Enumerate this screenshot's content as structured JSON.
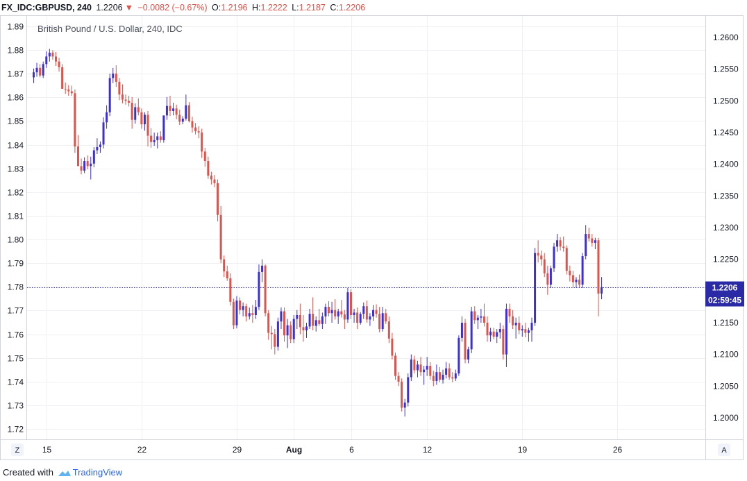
{
  "header": {
    "symbol": "FX_IDC:GBPUSD, 240",
    "last": "1.2206",
    "arrow": "▼",
    "change": "−0.0082 (−0.67%)",
    "o_label": "O:",
    "o_value": "1.2196",
    "h_label": "H:",
    "h_value": "1.2222",
    "l_label": "L:",
    "l_value": "1.2187",
    "c_label": "C:",
    "c_value": "1.2206"
  },
  "corner": {
    "left": "Z",
    "right": "A"
  },
  "price_badge": "1.2206",
  "countdown_badge": "02:59:45",
  "footer": {
    "prefix": "Created with",
    "brand": "TradingView"
  },
  "colors": {
    "up": "#3b2fd8",
    "down": "#e0524a",
    "lastline": "#2a2aa6",
    "grid": "#eef0f4"
  },
  "chart_data": {
    "type": "candlestick",
    "title": "British Pound / U.S. Dollar, 240, IDC",
    "left_axis": {
      "ticks": [
        1.89,
        1.88,
        1.87,
        1.86,
        1.85,
        1.84,
        1.83,
        1.82,
        1.81,
        1.8,
        1.79,
        1.78,
        1.77,
        1.76,
        1.75,
        1.74,
        1.73,
        1.72
      ],
      "range": [
        1.7156,
        1.8947
      ]
    },
    "right_axis": {
      "ticks": [
        "1.2600",
        "1.2550",
        "1.2500",
        "1.2450",
        "1.2400",
        "1.2350",
        "1.2300",
        "1.2250",
        "1.2200",
        "1.2150",
        "1.2100",
        "1.2050",
        "1.2000"
      ],
      "range": [
        1.1966,
        1.2635
      ]
    },
    "x_ticks": [
      {
        "label": "15",
        "bar": 4,
        "bold": false
      },
      {
        "label": "22",
        "bar": 34,
        "bold": false
      },
      {
        "label": "29",
        "bar": 64,
        "bold": false
      },
      {
        "label": "Aug",
        "bar": 82,
        "bold": true
      },
      {
        "label": "6",
        "bar": 100,
        "bold": false
      },
      {
        "label": "12",
        "bar": 124,
        "bold": false
      },
      {
        "label": "19",
        "bar": 154,
        "bold": false
      },
      {
        "label": "26",
        "bar": 184,
        "bold": false
      }
    ],
    "last_price": 1.2206,
    "ohlc": [
      [
        1.2537,
        1.2551,
        1.2528,
        1.2545
      ],
      [
        1.2545,
        1.256,
        1.2538,
        1.2552
      ],
      [
        1.2552,
        1.2558,
        1.2537,
        1.254
      ],
      [
        1.254,
        1.2562,
        1.2536,
        1.2558
      ],
      [
        1.2558,
        1.2578,
        1.2552,
        1.257
      ],
      [
        1.257,
        1.2582,
        1.2562,
        1.2576
      ],
      [
        1.2576,
        1.258,
        1.2565,
        1.257
      ],
      [
        1.257,
        1.2577,
        1.2555,
        1.2562
      ],
      [
        1.2562,
        1.2568,
        1.2546,
        1.2553
      ],
      [
        1.2553,
        1.2558,
        1.2534,
        1.2519
      ],
      [
        1.2519,
        1.2529,
        1.2511,
        1.2518
      ],
      [
        1.2518,
        1.2525,
        1.2508,
        1.2515
      ],
      [
        1.2515,
        1.2524,
        1.2508,
        1.2512
      ],
      [
        1.2512,
        1.2518,
        1.2418,
        1.2428
      ],
      [
        1.2428,
        1.2446,
        1.2398,
        1.2397
      ],
      [
        1.2397,
        1.2409,
        1.2384,
        1.239
      ],
      [
        1.239,
        1.2411,
        1.2386,
        1.2405
      ],
      [
        1.2405,
        1.2414,
        1.2392,
        1.2397
      ],
      [
        1.2397,
        1.2412,
        1.2376,
        1.2401
      ],
      [
        1.2401,
        1.2427,
        1.2395,
        1.2422
      ],
      [
        1.2422,
        1.2441,
        1.2416,
        1.2427
      ],
      [
        1.2427,
        1.2436,
        1.2418,
        1.2431
      ],
      [
        1.2431,
        1.2474,
        1.2425,
        1.2466
      ],
      [
        1.2466,
        1.2493,
        1.2456,
        1.2482
      ],
      [
        1.2482,
        1.2543,
        1.2476,
        1.2536
      ],
      [
        1.2536,
        1.2552,
        1.2528,
        1.2543
      ],
      [
        1.2543,
        1.2556,
        1.2522,
        1.253
      ],
      [
        1.253,
        1.2536,
        1.2501,
        1.251
      ],
      [
        1.251,
        1.2526,
        1.2496,
        1.2502
      ],
      [
        1.2502,
        1.251,
        1.2494,
        1.25
      ],
      [
        1.25,
        1.2508,
        1.2491,
        1.2497
      ],
      [
        1.2497,
        1.2506,
        1.2456,
        1.247
      ],
      [
        1.247,
        1.2496,
        1.2464,
        1.249
      ],
      [
        1.249,
        1.2504,
        1.2477,
        1.2482
      ],
      [
        1.2482,
        1.2488,
        1.2456,
        1.2463
      ],
      [
        1.2463,
        1.2482,
        1.2453,
        1.2478
      ],
      [
        1.2478,
        1.2484,
        1.2428,
        1.2445
      ],
      [
        1.2445,
        1.2457,
        1.2426,
        1.2435
      ],
      [
        1.2435,
        1.245,
        1.2429,
        1.2438
      ],
      [
        1.2438,
        1.245,
        1.2425,
        1.2444
      ],
      [
        1.2444,
        1.2452,
        1.2434,
        1.2438
      ],
      [
        1.2438,
        1.247,
        1.2434,
        1.2477
      ],
      [
        1.2477,
        1.2506,
        1.247,
        1.2492
      ],
      [
        1.2492,
        1.2508,
        1.2476,
        1.2484
      ],
      [
        1.2484,
        1.2497,
        1.2477,
        1.2488
      ],
      [
        1.2488,
        1.2494,
        1.2471,
        1.2478
      ],
      [
        1.2478,
        1.2486,
        1.2462,
        1.2467
      ],
      [
        1.2467,
        1.2476,
        1.2463,
        1.2472
      ],
      [
        1.2472,
        1.251,
        1.2469,
        1.2493
      ],
      [
        1.2493,
        1.2498,
        1.2466,
        1.2468
      ],
      [
        1.2468,
        1.2475,
        1.245,
        1.2458
      ],
      [
        1.2458,
        1.2465,
        1.2447,
        1.2452
      ],
      [
        1.2452,
        1.246,
        1.2441,
        1.245
      ],
      [
        1.245,
        1.2456,
        1.241,
        1.242
      ],
      [
        1.242,
        1.2426,
        1.2396,
        1.2405
      ],
      [
        1.2405,
        1.2412,
        1.2377,
        1.2382
      ],
      [
        1.2382,
        1.2388,
        1.2368,
        1.2376
      ],
      [
        1.2376,
        1.2383,
        1.2364,
        1.237
      ],
      [
        1.237,
        1.2376,
        1.231,
        1.232
      ],
      [
        1.232,
        1.2334,
        1.2244,
        1.225
      ],
      [
        1.225,
        1.2256,
        1.2222,
        1.2231
      ],
      [
        1.2231,
        1.224,
        1.2216,
        1.222
      ],
      [
        1.222,
        1.2228,
        1.2177,
        1.2183
      ],
      [
        1.2183,
        1.2188,
        1.214,
        1.2146
      ],
      [
        1.2146,
        1.2192,
        1.2141,
        1.2185
      ],
      [
        1.2185,
        1.219,
        1.2163,
        1.217
      ],
      [
        1.217,
        1.2182,
        1.216,
        1.2176
      ],
      [
        1.2176,
        1.218,
        1.2152,
        1.216
      ],
      [
        1.216,
        1.2174,
        1.2155,
        1.2165
      ],
      [
        1.2165,
        1.2178,
        1.215,
        1.2162
      ],
      [
        1.2162,
        1.2186,
        1.2156,
        1.2175
      ],
      [
        1.2175,
        1.2242,
        1.217,
        1.223
      ],
      [
        1.223,
        1.225,
        1.2214,
        1.224
      ],
      [
        1.224,
        1.2242,
        1.216,
        1.2165
      ],
      [
        1.2165,
        1.217,
        1.2123,
        1.2134
      ],
      [
        1.2134,
        1.2145,
        1.2108,
        1.2132
      ],
      [
        1.2132,
        1.214,
        1.21,
        1.2112
      ],
      [
        1.2112,
        1.2158,
        1.2106,
        1.2152
      ],
      [
        1.2152,
        1.2174,
        1.214,
        1.2168
      ],
      [
        1.2168,
        1.2174,
        1.212,
        1.213
      ],
      [
        1.213,
        1.2156,
        1.211,
        1.2146
      ],
      [
        1.2146,
        1.2152,
        1.2118,
        1.2124
      ],
      [
        1.2124,
        1.2162,
        1.2118,
        1.2156
      ],
      [
        1.2156,
        1.217,
        1.214,
        1.2162
      ],
      [
        1.2162,
        1.218,
        1.2132,
        1.2143
      ],
      [
        1.2143,
        1.2162,
        1.212,
        1.2138
      ],
      [
        1.2138,
        1.215,
        1.2126,
        1.2144
      ],
      [
        1.2144,
        1.2172,
        1.214,
        1.2164
      ],
      [
        1.2164,
        1.219,
        1.2138,
        1.2145
      ],
      [
        1.2145,
        1.216,
        1.2136,
        1.2154
      ],
      [
        1.2154,
        1.2172,
        1.2145,
        1.2148
      ],
      [
        1.2148,
        1.2166,
        1.214,
        1.216
      ],
      [
        1.216,
        1.218,
        1.2148,
        1.2175
      ],
      [
        1.2175,
        1.2184,
        1.216,
        1.2165
      ],
      [
        1.2165,
        1.2183,
        1.215,
        1.217
      ],
      [
        1.217,
        1.2187,
        1.2155,
        1.216
      ],
      [
        1.216,
        1.2172,
        1.2148,
        1.2168
      ],
      [
        1.2168,
        1.2186,
        1.2158,
        1.2163
      ],
      [
        1.2163,
        1.217,
        1.214,
        1.2155
      ],
      [
        1.2155,
        1.2205,
        1.215,
        1.2198
      ],
      [
        1.2198,
        1.2203,
        1.2156,
        1.2162
      ],
      [
        1.2162,
        1.2172,
        1.215,
        1.2166
      ],
      [
        1.2166,
        1.2174,
        1.214,
        1.215
      ],
      [
        1.215,
        1.2167,
        1.2147,
        1.2164
      ],
      [
        1.2164,
        1.2182,
        1.2156,
        1.2176
      ],
      [
        1.2176,
        1.2185,
        1.215,
        1.2155
      ],
      [
        1.2155,
        1.2165,
        1.2145,
        1.216
      ],
      [
        1.216,
        1.2178,
        1.2153,
        1.217
      ],
      [
        1.217,
        1.2179,
        1.2158,
        1.2164
      ],
      [
        1.2164,
        1.2175,
        1.2135,
        1.214
      ],
      [
        1.214,
        1.2175,
        1.2136,
        1.2165
      ],
      [
        1.2165,
        1.2172,
        1.2148,
        1.2152
      ],
      [
        1.2152,
        1.216,
        1.2118,
        1.2125
      ],
      [
        1.2125,
        1.2134,
        1.2092,
        1.2098
      ],
      [
        1.2098,
        1.2103,
        1.206,
        1.2066
      ],
      [
        1.2066,
        1.2072,
        1.205,
        1.2057
      ],
      [
        1.2057,
        1.2062,
        1.201,
        1.2016
      ],
      [
        1.2016,
        1.203,
        1.2002,
        1.2024
      ],
      [
        1.2024,
        1.207,
        1.2018,
        1.2064
      ],
      [
        1.2064,
        1.21,
        1.2058,
        1.2092
      ],
      [
        1.2092,
        1.2098,
        1.207,
        1.2075
      ],
      [
        1.2075,
        1.209,
        1.2064,
        1.2084
      ],
      [
        1.2084,
        1.2096,
        1.2066,
        1.2072
      ],
      [
        1.2072,
        1.2082,
        1.2052,
        1.2076
      ],
      [
        1.2076,
        1.2096,
        1.2066,
        1.2082
      ],
      [
        1.2082,
        1.2088,
        1.206,
        1.2066
      ],
      [
        1.2066,
        1.2074,
        1.205,
        1.2058
      ],
      [
        1.2058,
        1.2084,
        1.2052,
        1.2072
      ],
      [
        1.2072,
        1.208,
        1.2056,
        1.206
      ],
      [
        1.206,
        1.2076,
        1.2054,
        1.2068
      ],
      [
        1.2068,
        1.2088,
        1.2062,
        1.2078
      ],
      [
        1.2078,
        1.2086,
        1.206,
        1.2064
      ],
      [
        1.2064,
        1.2072,
        1.2056,
        1.2062
      ],
      [
        1.2062,
        1.2076,
        1.2058,
        1.207
      ],
      [
        1.207,
        1.213,
        1.2066,
        1.2126
      ],
      [
        1.2126,
        1.216,
        1.212,
        1.215
      ],
      [
        1.215,
        1.2156,
        1.2086,
        1.2092
      ],
      [
        1.2092,
        1.2112,
        1.2086,
        1.2108
      ],
      [
        1.2108,
        1.2175,
        1.2102,
        1.2168
      ],
      [
        1.2168,
        1.2176,
        1.2148,
        1.2154
      ],
      [
        1.2154,
        1.2162,
        1.214,
        1.2158
      ],
      [
        1.2158,
        1.2172,
        1.215,
        1.216
      ],
      [
        1.216,
        1.218,
        1.2144,
        1.215
      ],
      [
        1.215,
        1.216,
        1.212,
        1.213
      ],
      [
        1.213,
        1.2142,
        1.212,
        1.2136
      ],
      [
        1.2136,
        1.2142,
        1.2124,
        1.2128
      ],
      [
        1.2128,
        1.214,
        1.2118,
        1.2135
      ],
      [
        1.2135,
        1.215,
        1.2125,
        1.214
      ],
      [
        1.214,
        1.2146,
        1.2092,
        1.21
      ],
      [
        1.21,
        1.218,
        1.208,
        1.2172
      ],
      [
        1.2172,
        1.218,
        1.215,
        1.216
      ],
      [
        1.216,
        1.217,
        1.214,
        1.2146
      ],
      [
        1.2146,
        1.2158,
        1.2125,
        1.215
      ],
      [
        1.215,
        1.216,
        1.2132,
        1.2138
      ],
      [
        1.2138,
        1.2146,
        1.2128,
        1.214
      ],
      [
        1.214,
        1.215,
        1.2127,
        1.2134
      ],
      [
        1.2134,
        1.2142,
        1.212,
        1.2138
      ],
      [
        1.2138,
        1.2158,
        1.212,
        1.215
      ],
      [
        1.215,
        1.2268,
        1.2145,
        1.226
      ],
      [
        1.226,
        1.228,
        1.2245,
        1.2256
      ],
      [
        1.2256,
        1.2264,
        1.224,
        1.225
      ],
      [
        1.225,
        1.226,
        1.2222,
        1.2228
      ],
      [
        1.2228,
        1.224,
        1.2194,
        1.221
      ],
      [
        1.221,
        1.224,
        1.2205,
        1.2236
      ],
      [
        1.2236,
        1.2276,
        1.223,
        1.227
      ],
      [
        1.227,
        1.229,
        1.2262,
        1.228
      ],
      [
        1.228,
        1.2285,
        1.2264,
        1.227
      ],
      [
        1.227,
        1.2286,
        1.2262,
        1.2268
      ],
      [
        1.2268,
        1.2272,
        1.2226,
        1.2232
      ],
      [
        1.2232,
        1.224,
        1.2215,
        1.2225
      ],
      [
        1.2225,
        1.2232,
        1.2206,
        1.2214
      ],
      [
        1.2214,
        1.2222,
        1.2205,
        1.2218
      ],
      [
        1.2218,
        1.2226,
        1.2206,
        1.221
      ],
      [
        1.221,
        1.226,
        1.2205,
        1.2255
      ],
      [
        1.2255,
        1.2304,
        1.225,
        1.229
      ],
      [
        1.229,
        1.23,
        1.2278,
        1.2283
      ],
      [
        1.2283,
        1.229,
        1.227,
        1.2276
      ],
      [
        1.2276,
        1.2284,
        1.2266,
        1.228
      ],
      [
        1.228,
        1.2284,
        1.216,
        1.2196
      ],
      [
        1.2196,
        1.2222,
        1.2187,
        1.2206
      ]
    ]
  }
}
